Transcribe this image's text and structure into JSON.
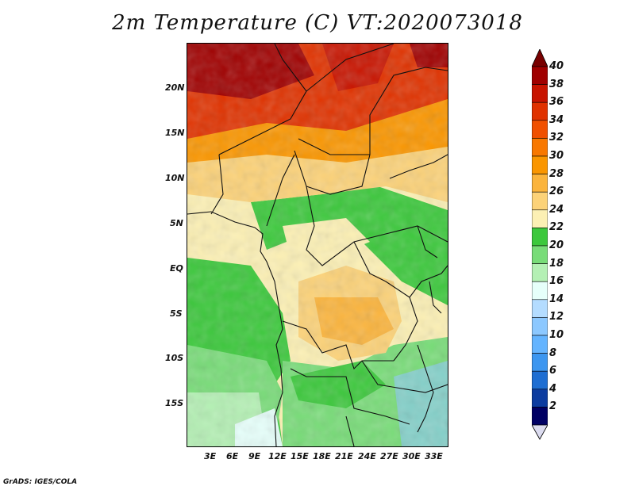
{
  "title": "2m Temperature (C) VT:2020073018",
  "credit": "GrADS: IGES/COLA",
  "map": {
    "lat_ticks": [
      "20N",
      "15N",
      "10N",
      "5N",
      "EQ",
      "5S",
      "10S",
      "15S"
    ],
    "lon_ticks": [
      "3E",
      "6E",
      "9E",
      "12E",
      "15E",
      "18E",
      "21E",
      "24E",
      "27E",
      "30E",
      "33E"
    ]
  },
  "colorbar": {
    "labels": [
      "40",
      "38",
      "36",
      "34",
      "32",
      "30",
      "28",
      "26",
      "24",
      "22",
      "20",
      "18",
      "16",
      "14",
      "12",
      "10",
      "8",
      "6",
      "4",
      "2"
    ],
    "colors": [
      "#a00000",
      "#c81400",
      "#e03200",
      "#f05000",
      "#f87800",
      "#fa9600",
      "#fbb43c",
      "#fcd278",
      "#fcf0b4",
      "#3cc83c",
      "#78dc78",
      "#b4f0b4",
      "#e6fffa",
      "#b4dcff",
      "#8cc8ff",
      "#64b4ff",
      "#3c96f0",
      "#1e6ed2",
      "#0c3ca0",
      "#000064"
    ],
    "top_cap_color": "#780000",
    "bottom_cap_color": "#dcdcf0"
  }
}
